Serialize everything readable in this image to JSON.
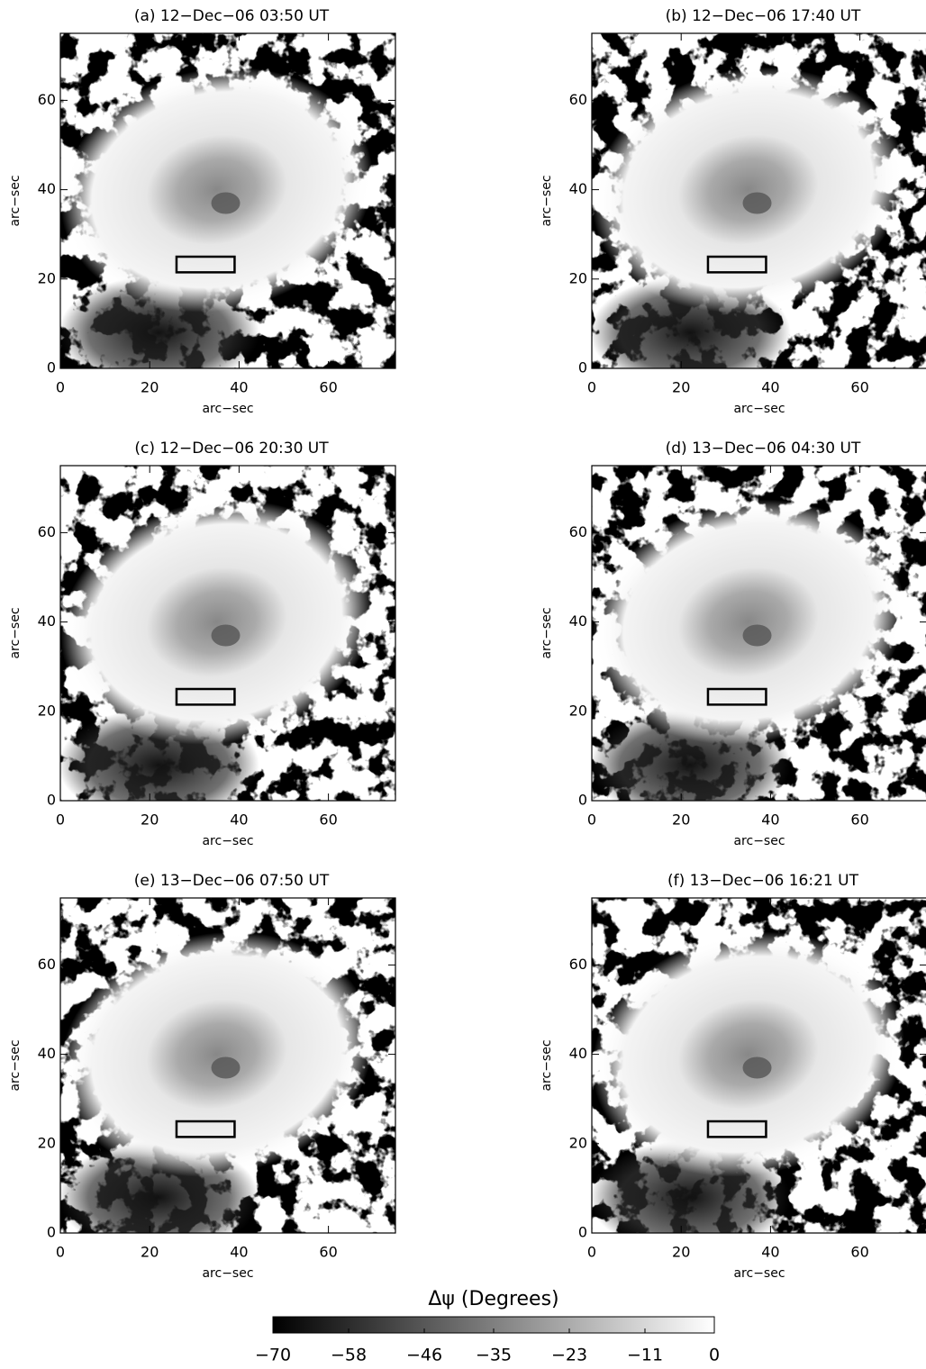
{
  "chart_data": [
    {
      "type": "image",
      "title": "(a) 12−Dec−06 03:50 UT",
      "xlabel": "arc−sec",
      "ylabel": "arc−sec",
      "xlim": [
        0,
        75
      ],
      "ylim": [
        0,
        75
      ],
      "xticks": [
        0,
        20,
        40,
        60
      ],
      "yticks": [
        0,
        20,
        40,
        60
      ],
      "regions": [
        {
          "x": [
            26,
            39
          ],
          "y": [
            21.5,
            25
          ]
        }
      ]
    },
    {
      "type": "image",
      "title": "(b) 12−Dec−06 17:40 UT",
      "xlabel": "arc−sec",
      "ylabel": "arc−sec",
      "xlim": [
        0,
        75
      ],
      "ylim": [
        0,
        75
      ],
      "xticks": [
        0,
        20,
        40,
        60
      ],
      "yticks": [
        0,
        20,
        40,
        60
      ],
      "regions": [
        {
          "x": [
            26,
            39
          ],
          "y": [
            21.5,
            25
          ]
        }
      ]
    },
    {
      "type": "image",
      "title": "(c) 12−Dec−06 20:30 UT",
      "xlabel": "arc−sec",
      "ylabel": "arc−sec",
      "xlim": [
        0,
        75
      ],
      "ylim": [
        0,
        75
      ],
      "xticks": [
        0,
        20,
        40,
        60
      ],
      "yticks": [
        0,
        20,
        40,
        60
      ],
      "regions": [
        {
          "x": [
            26,
            39
          ],
          "y": [
            21.5,
            25
          ]
        }
      ]
    },
    {
      "type": "image",
      "title": "(d) 13−Dec−06 04:30 UT",
      "xlabel": "arc−sec",
      "ylabel": "arc−sec",
      "xlim": [
        0,
        75
      ],
      "ylim": [
        0,
        75
      ],
      "xticks": [
        0,
        20,
        40,
        60
      ],
      "yticks": [
        0,
        20,
        40,
        60
      ],
      "regions": [
        {
          "x": [
            26,
            39
          ],
          "y": [
            21.5,
            25
          ]
        }
      ]
    },
    {
      "type": "image",
      "title": "(e) 13−Dec−06 07:50 UT",
      "xlabel": "arc−sec",
      "ylabel": "arc−sec",
      "xlim": [
        0,
        75
      ],
      "ylim": [
        0,
        75
      ],
      "xticks": [
        0,
        20,
        40,
        60
      ],
      "yticks": [
        0,
        20,
        40,
        60
      ],
      "regions": [
        {
          "x": [
            26,
            39
          ],
          "y": [
            21.5,
            25
          ]
        }
      ]
    },
    {
      "type": "image",
      "title": "(f) 13−Dec−06 16:21 UT",
      "xlabel": "arc−sec",
      "ylabel": "arc−sec",
      "xlim": [
        0,
        75
      ],
      "ylim": [
        0,
        75
      ],
      "xticks": [
        0,
        20,
        40,
        60
      ],
      "yticks": [
        0,
        20,
        40,
        60
      ],
      "regions": [
        {
          "x": [
            26,
            39
          ],
          "y": [
            21.5,
            25
          ]
        }
      ]
    },
    {
      "type": "colorbar",
      "title": "Δψ (Degrees)",
      "xlim": [
        -70,
        0
      ],
      "xticks": [
        {
          "value": -70,
          "label": "−70"
        },
        {
          "value": -58,
          "label": "−58"
        },
        {
          "value": -46,
          "label": "−46"
        },
        {
          "value": -35,
          "label": "−35"
        },
        {
          "value": -23,
          "label": "−23"
        },
        {
          "value": -11,
          "label": "−11"
        },
        0
      ]
    }
  ]
}
